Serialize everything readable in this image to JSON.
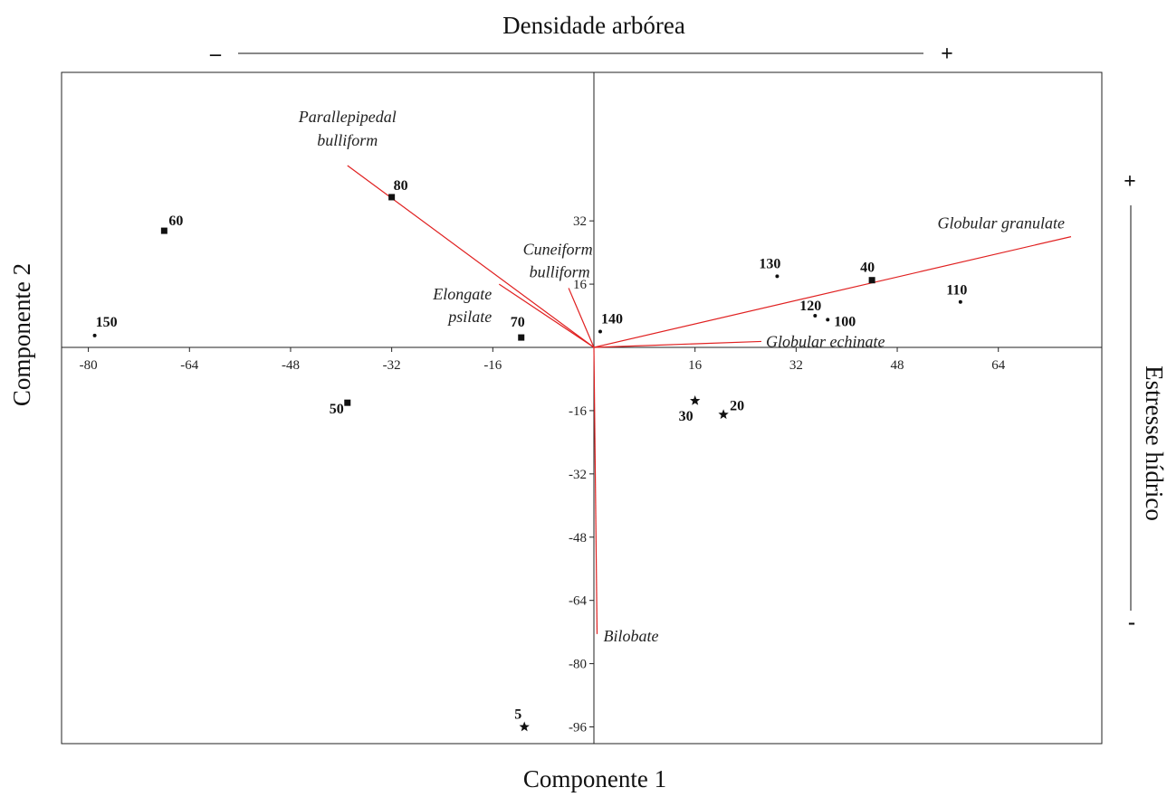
{
  "chart_data": {
    "type": "scatter",
    "title": "",
    "xlabel": "Componente 1",
    "ylabel": "Componente 2",
    "xlim": [
      -82,
      76
    ],
    "ylim": [
      -99,
      70
    ],
    "x_ticks": [
      -80,
      -64,
      -48,
      -32,
      -16,
      16,
      32,
      48,
      64
    ],
    "y_ticks": [
      32,
      16,
      -16,
      -32,
      -48,
      -64,
      -80,
      -96
    ],
    "grid": false,
    "legend": "none",
    "top_annotation": {
      "text": "Densidade arbórea",
      "minus": "–",
      "plus": "+"
    },
    "right_annotation": {
      "text": "Estresse hídrico",
      "plus": "+",
      "minus": "-"
    },
    "points": [
      {
        "label": "60",
        "x": -68,
        "y": 29.5,
        "marker": "square"
      },
      {
        "label": "150",
        "x": -79,
        "y": 3,
        "marker": "dot"
      },
      {
        "label": "80",
        "x": -32,
        "y": 38,
        "marker": "square"
      },
      {
        "label": "50",
        "x": -39,
        "y": -14,
        "marker": "square"
      },
      {
        "label": "70",
        "x": -11.5,
        "y": 2.5,
        "marker": "square"
      },
      {
        "label": "140",
        "x": 1,
        "y": 4,
        "marker": "dot"
      },
      {
        "label": "130",
        "x": 29,
        "y": 18,
        "marker": "dot"
      },
      {
        "label": "40",
        "x": 44,
        "y": 17,
        "marker": "square"
      },
      {
        "label": "110",
        "x": 58,
        "y": 11.5,
        "marker": "dot"
      },
      {
        "label": "120",
        "x": 35,
        "y": 8,
        "marker": "dot"
      },
      {
        "label": "100",
        "x": 37,
        "y": 7,
        "marker": "dot"
      },
      {
        "label": "30",
        "x": 16,
        "y": -13.5,
        "marker": "star"
      },
      {
        "label": "20",
        "x": 20.5,
        "y": -17,
        "marker": "star"
      },
      {
        "label": "5",
        "x": -11,
        "y": -96,
        "marker": "star"
      }
    ],
    "vectors": [
      {
        "name": "Parallepipedal bulliform",
        "x": -39,
        "y": 46
      },
      {
        "name": "Cuneiform bulliform",
        "x": -4,
        "y": 15
      },
      {
        "name": "Elongate psilate",
        "x": -15,
        "y": 16
      },
      {
        "name": "Globular granulate",
        "x": 75.5,
        "y": 28
      },
      {
        "name": "Globular echinate",
        "x": 26.5,
        "y": 1.5
      },
      {
        "name": "Bilobate",
        "x": 0.5,
        "y": -72.5
      }
    ],
    "vector_color": "#e02020"
  }
}
